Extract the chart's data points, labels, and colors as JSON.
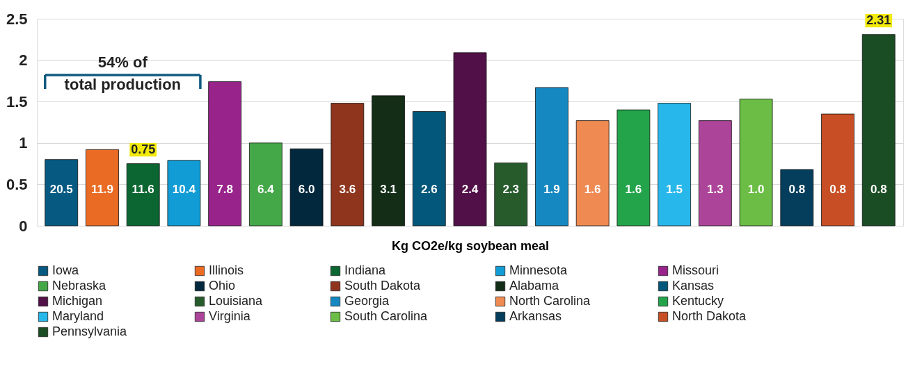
{
  "chart_data": {
    "type": "bar",
    "xlabel": "Kg CO2e/kg soybean meal",
    "categories": [
      null,
      null,
      null,
      null,
      null,
      null,
      null,
      null,
      null,
      null,
      null,
      null,
      null,
      null,
      null,
      null,
      null,
      null,
      null,
      null,
      null
    ],
    "ylim": [
      0,
      2.5
    ],
    "yticks": [
      0,
      0.5,
      1,
      1.5,
      2,
      2.5
    ],
    "grid": "y",
    "legend": "bottom",
    "annotations": [
      "54% of\ntotal production",
      "20.5",
      "11.9",
      "11.6",
      "10.4",
      "7.8",
      "6.4",
      "6.0",
      "3.6",
      "3.1",
      "2.6",
      "2.4",
      "2.3",
      "1.9",
      "1.6",
      "1.6",
      "1.5",
      "1.3",
      "1.0",
      "0.8",
      "0.8",
      "0.8",
      {
        "text": "0.75",
        "y": 0.75
      },
      {
        "text": "2.31",
        "y": 2.31
      }
    ],
    "series": [
      {
        "name": "Iowa",
        "color": "#065a82",
        "values": [
          0.8,
          null,
          null,
          null,
          null,
          null,
          null,
          null,
          null,
          null,
          null,
          null,
          null,
          null,
          null,
          null,
          null,
          null,
          null,
          null,
          null
        ]
      },
      {
        "name": "Illinois",
        "color": "#e96b24",
        "values": [
          null,
          0.92,
          null,
          null,
          null,
          null,
          null,
          null,
          null,
          null,
          null,
          null,
          null,
          null,
          null,
          null,
          null,
          null,
          null,
          null,
          null
        ]
      },
      {
        "name": "Indiana",
        "color": "#0b6631",
        "values": [
          null,
          null,
          0.75,
          null,
          null,
          null,
          null,
          null,
          null,
          null,
          null,
          null,
          null,
          null,
          null,
          null,
          null,
          null,
          null,
          null,
          null
        ]
      },
      {
        "name": "Minnesota",
        "color": "#129cd6",
        "values": [
          null,
          null,
          null,
          0.79,
          null,
          null,
          null,
          null,
          null,
          null,
          null,
          null,
          null,
          null,
          null,
          null,
          null,
          null,
          null,
          null,
          null
        ]
      },
      {
        "name": "Missouri",
        "color": "#98238a",
        "values": [
          null,
          null,
          null,
          null,
          1.74,
          null,
          null,
          null,
          null,
          null,
          null,
          null,
          null,
          null,
          null,
          null,
          null,
          null,
          null,
          null,
          null
        ]
      },
      {
        "name": "Nebraska",
        "color": "#44a748",
        "values": [
          null,
          null,
          null,
          null,
          null,
          1.0,
          null,
          null,
          null,
          null,
          null,
          null,
          null,
          null,
          null,
          null,
          null,
          null,
          null,
          null,
          null
        ]
      },
      {
        "name": "Ohio",
        "color": "#01283d",
        "values": [
          null,
          null,
          null,
          null,
          null,
          null,
          0.93,
          null,
          null,
          null,
          null,
          null,
          null,
          null,
          null,
          null,
          null,
          null,
          null,
          null,
          null
        ]
      },
      {
        "name": "South Dakota",
        "color": "#8f341d",
        "values": [
          null,
          null,
          null,
          null,
          null,
          null,
          null,
          1.48,
          null,
          null,
          null,
          null,
          null,
          null,
          null,
          null,
          null,
          null,
          null,
          null,
          null
        ]
      },
      {
        "name": "Alabama",
        "color": "#132d17",
        "values": [
          null,
          null,
          null,
          null,
          null,
          null,
          null,
          null,
          1.57,
          null,
          null,
          null,
          null,
          null,
          null,
          null,
          null,
          null,
          null,
          null,
          null
        ]
      },
      {
        "name": "Kansas",
        "color": "#03577a",
        "values": [
          null,
          null,
          null,
          null,
          null,
          null,
          null,
          null,
          null,
          1.38,
          null,
          null,
          null,
          null,
          null,
          null,
          null,
          null,
          null,
          null,
          null
        ]
      },
      {
        "name": "Michigan",
        "color": "#521048",
        "values": [
          null,
          null,
          null,
          null,
          null,
          null,
          null,
          null,
          null,
          null,
          2.09,
          null,
          null,
          null,
          null,
          null,
          null,
          null,
          null,
          null,
          null
        ]
      },
      {
        "name": "Louisiana",
        "color": "#275b2c",
        "values": [
          null,
          null,
          null,
          null,
          null,
          null,
          null,
          null,
          null,
          null,
          null,
          0.76,
          null,
          null,
          null,
          null,
          null,
          null,
          null,
          null,
          null
        ]
      },
      {
        "name": "Georgia",
        "color": "#1588c1",
        "values": [
          null,
          null,
          null,
          null,
          null,
          null,
          null,
          null,
          null,
          null,
          null,
          null,
          1.67,
          null,
          null,
          null,
          null,
          null,
          null,
          null,
          null
        ]
      },
      {
        "name": "North Carolina",
        "color": "#ee8a52",
        "values": [
          null,
          null,
          null,
          null,
          null,
          null,
          null,
          null,
          null,
          null,
          null,
          null,
          null,
          1.27,
          null,
          null,
          null,
          null,
          null,
          null,
          null
        ]
      },
      {
        "name": "Kentucky",
        "color": "#23a44a",
        "values": [
          null,
          null,
          null,
          null,
          null,
          null,
          null,
          null,
          null,
          null,
          null,
          null,
          null,
          null,
          1.4,
          null,
          null,
          null,
          null,
          null,
          null
        ]
      },
      {
        "name": "Maryland",
        "color": "#27b7ea",
        "values": [
          null,
          null,
          null,
          null,
          null,
          null,
          null,
          null,
          null,
          null,
          null,
          null,
          null,
          null,
          null,
          1.48,
          null,
          null,
          null,
          null,
          null
        ]
      },
      {
        "name": "Virginia",
        "color": "#ac4599",
        "values": [
          null,
          null,
          null,
          null,
          null,
          null,
          null,
          null,
          null,
          null,
          null,
          null,
          null,
          null,
          null,
          null,
          1.27,
          null,
          null,
          null,
          null
        ]
      },
      {
        "name": "South Carolina",
        "color": "#6bbd45",
        "values": [
          null,
          null,
          null,
          null,
          null,
          null,
          null,
          null,
          null,
          null,
          null,
          null,
          null,
          null,
          null,
          null,
          null,
          1.53,
          null,
          null,
          null
        ]
      },
      {
        "name": "Arkansas",
        "color": "#043e5c",
        "values": [
          null,
          null,
          null,
          null,
          null,
          null,
          null,
          null,
          null,
          null,
          null,
          null,
          null,
          null,
          null,
          null,
          null,
          null,
          0.68,
          null,
          null
        ]
      },
      {
        "name": "North Dakota",
        "color": "#c84f25",
        "values": [
          null,
          null,
          null,
          null,
          null,
          null,
          null,
          null,
          null,
          null,
          null,
          null,
          null,
          null,
          null,
          null,
          null,
          null,
          null,
          1.35,
          null
        ]
      },
      {
        "name": "Pennsylvania",
        "color": "#1b4d24",
        "values": [
          null,
          null,
          null,
          null,
          null,
          null,
          null,
          null,
          null,
          null,
          null,
          null,
          null,
          null,
          null,
          null,
          null,
          null,
          null,
          null,
          2.31
        ]
      }
    ]
  }
}
